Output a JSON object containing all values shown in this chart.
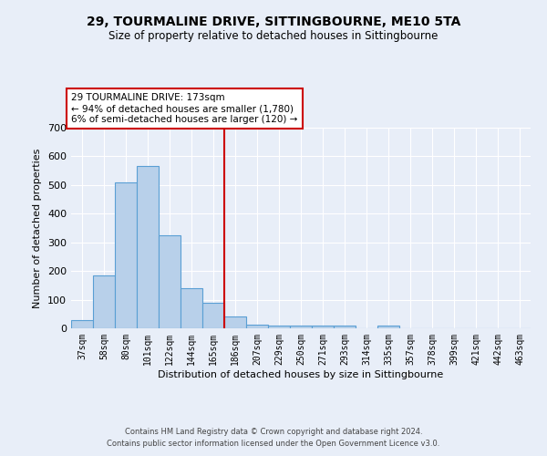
{
  "title": "29, TOURMALINE DRIVE, SITTINGBOURNE, ME10 5TA",
  "subtitle": "Size of property relative to detached houses in Sittingbourne",
  "xlabel": "Distribution of detached houses by size in Sittingbourne",
  "ylabel": "Number of detached properties",
  "categories": [
    "37sqm",
    "58sqm",
    "80sqm",
    "101sqm",
    "122sqm",
    "144sqm",
    "165sqm",
    "186sqm",
    "207sqm",
    "229sqm",
    "250sqm",
    "271sqm",
    "293sqm",
    "314sqm",
    "335sqm",
    "357sqm",
    "378sqm",
    "399sqm",
    "421sqm",
    "442sqm",
    "463sqm"
  ],
  "values": [
    30,
    185,
    510,
    565,
    325,
    140,
    88,
    42,
    12,
    8,
    8,
    8,
    8,
    0,
    8,
    0,
    0,
    0,
    0,
    0,
    0
  ],
  "bar_color": "#b8d0ea",
  "bar_edge_color": "#5a9fd4",
  "vline_x_index": 7,
  "vline_color": "#cc0000",
  "annotation_line1": "29 TOURMALINE DRIVE: 173sqm",
  "annotation_line2": "← 94% of detached houses are smaller (1,780)",
  "annotation_line3": "6% of semi-detached houses are larger (120) →",
  "annotation_box_facecolor": "#ffffff",
  "annotation_box_edgecolor": "#cc0000",
  "ylim": [
    0,
    700
  ],
  "yticks": [
    0,
    100,
    200,
    300,
    400,
    500,
    600,
    700
  ],
  "background_color": "#e8eef8",
  "grid_color": "#ffffff",
  "title_fontsize": 10,
  "subtitle_fontsize": 8.5,
  "ylabel_fontsize": 8,
  "xlabel_fontsize": 8,
  "tick_fontsize": 7,
  "footer_line1": "Contains HM Land Registry data © Crown copyright and database right 2024.",
  "footer_line2": "Contains public sector information licensed under the Open Government Licence v3.0."
}
